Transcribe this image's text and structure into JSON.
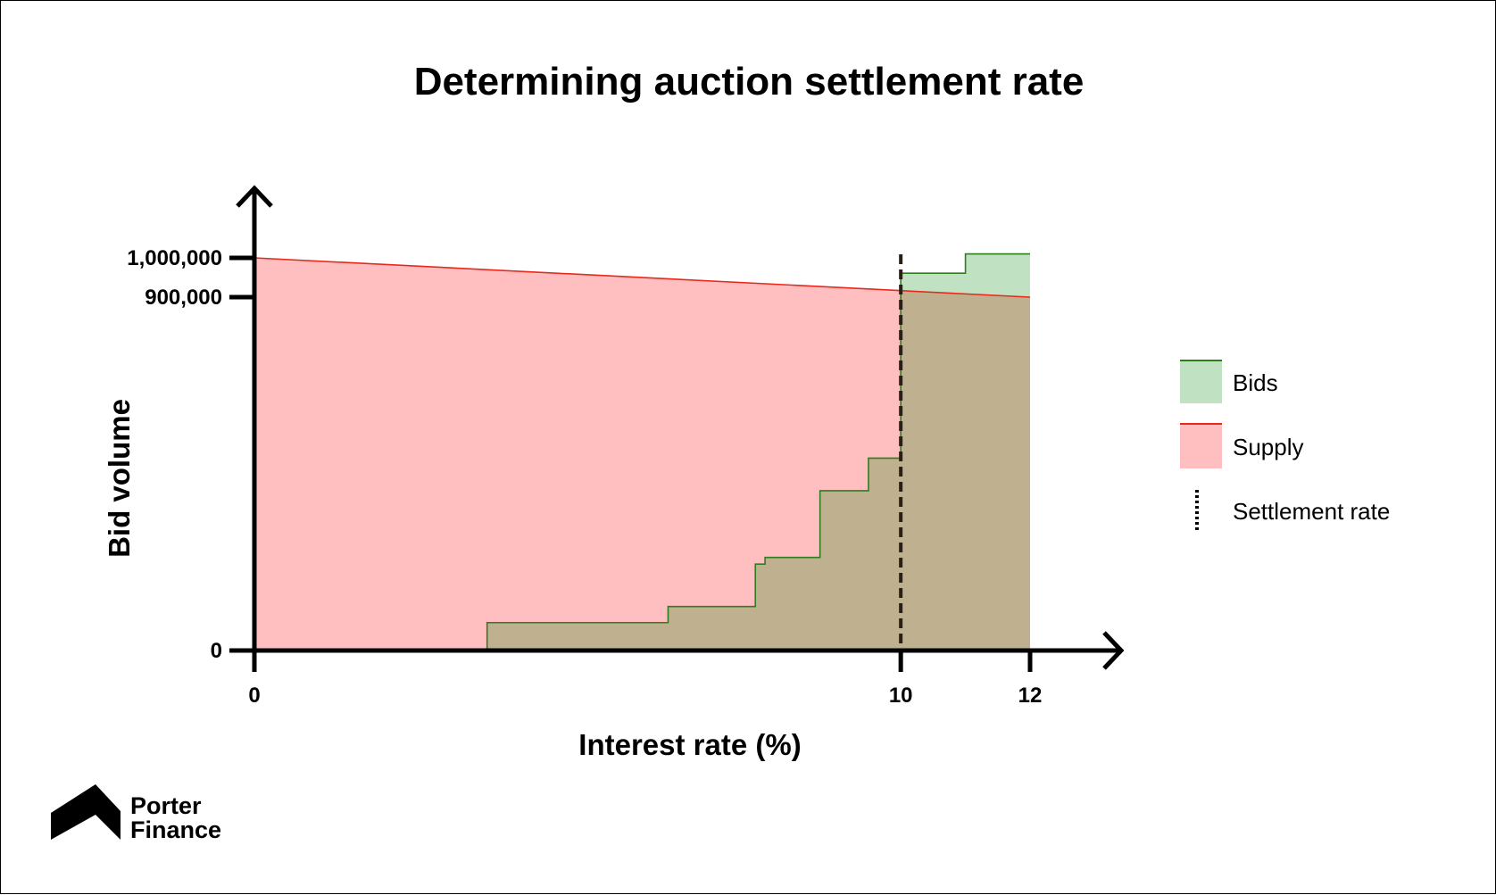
{
  "brand": {
    "line1": "Porter",
    "line2": "Finance"
  },
  "chart_data": {
    "type": "area",
    "title": "Determining auction settlement rate",
    "xlabel": "Interest rate (%)",
    "ylabel": "Bid volume",
    "xlim": [
      0,
      12
    ],
    "ylim": [
      0,
      1000000
    ],
    "x_ticks": [
      {
        "value": 0,
        "label": "0"
      },
      {
        "value": 10,
        "label": "10"
      },
      {
        "value": 12,
        "label": "12"
      }
    ],
    "y_ticks": [
      {
        "value": 0,
        "label": "0"
      },
      {
        "value": 900000,
        "label": "900,000"
      },
      {
        "value": 1000000,
        "label": "1,000,000"
      }
    ],
    "legend": "right",
    "series": [
      {
        "name": "Supply",
        "kind": "line-area",
        "color": "#e8291c",
        "fill": "#ffbfc1",
        "points": [
          [
            0,
            1000000
          ],
          [
            12,
            900000
          ]
        ]
      },
      {
        "name": "Bids",
        "kind": "step-area",
        "color": "#2f7d1e",
        "fill": "#c0e2c3",
        "points": [
          [
            3.6,
            0
          ],
          [
            3.6,
            71000
          ],
          [
            6.4,
            71000
          ],
          [
            6.4,
            112000
          ],
          [
            7.75,
            112000
          ],
          [
            7.75,
            220000
          ],
          [
            7.9,
            220000
          ],
          [
            7.9,
            237000
          ],
          [
            8.75,
            237000
          ],
          [
            8.75,
            407000
          ],
          [
            9.5,
            407000
          ],
          [
            9.5,
            490000
          ],
          [
            10,
            490000
          ],
          [
            10,
            557000
          ],
          [
            10,
            961000
          ],
          [
            11,
            961000
          ],
          [
            11,
            1010000
          ],
          [
            12,
            1010000
          ],
          [
            12,
            0
          ]
        ]
      },
      {
        "name": "Settlement rate",
        "kind": "vline",
        "color": "#000000",
        "x": 10
      }
    ]
  }
}
